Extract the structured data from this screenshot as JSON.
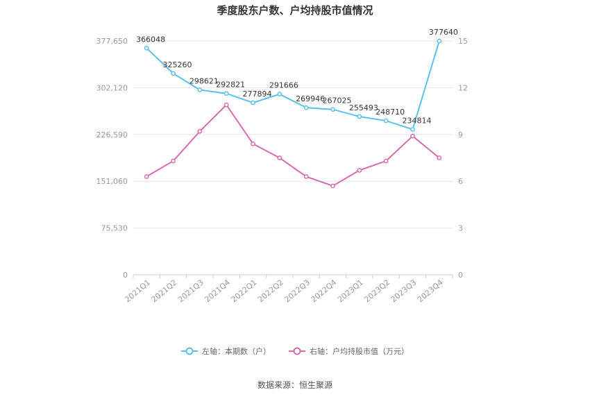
{
  "chart_data": {
    "type": "line",
    "title": "季度股东户数、户均持股市值情况",
    "categories": [
      "2021Q1",
      "2021Q2",
      "2021Q3",
      "2021Q4",
      "2022Q1",
      "2022Q2",
      "2022Q3",
      "2022Q4",
      "2023Q1",
      "2023Q2",
      "2023Q3",
      "2023Q4"
    ],
    "left_axis": {
      "ticks": [
        "0",
        "75,530",
        "151,060",
        "226,590",
        "302,120",
        "377,650"
      ],
      "range": [
        0,
        377650
      ]
    },
    "right_axis": {
      "ticks": [
        "0",
        "3",
        "6",
        "9",
        "12",
        "15"
      ],
      "range": [
        0,
        15
      ]
    },
    "series": [
      {
        "name": "左轴：本期数（户）",
        "axis": "left",
        "color": "#5bc0eb",
        "values": [
          366048,
          325260,
          298621,
          292821,
          277894,
          291666,
          269946,
          267025,
          255493,
          248710,
          234814,
          377640
        ],
        "labels": [
          "366048",
          "325260",
          "298621",
          "292821",
          "277894",
          "291666",
          "269946",
          "267025",
          "255493",
          "248710",
          "234814",
          "377640"
        ]
      },
      {
        "name": "右轴：户均持股市值（万元）",
        "axis": "right",
        "color": "#d36cb0",
        "values": [
          6.3,
          7.3,
          9.2,
          10.9,
          8.4,
          7.5,
          6.3,
          5.7,
          6.7,
          7.3,
          8.9,
          7.5
        ]
      }
    ],
    "grid": true,
    "legend_position": "bottom"
  },
  "source": "数据来源：恒生聚源"
}
